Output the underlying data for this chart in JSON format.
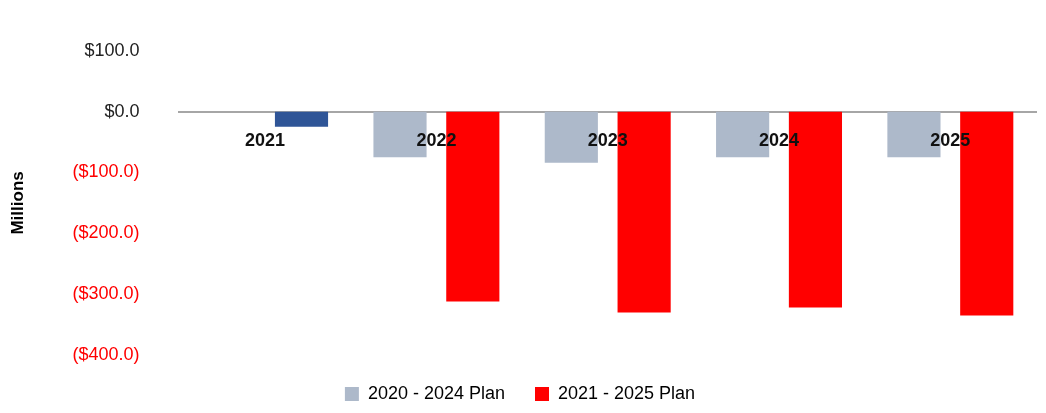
{
  "chart_data": {
    "type": "bar",
    "ylabel": "Millions",
    "categories": [
      "2021",
      "2022",
      "2023",
      "2024",
      "2025"
    ],
    "series": [
      {
        "name": "2020 - 2024 Plan",
        "color": "#adb9ca",
        "values": [
          null,
          -75,
          -84,
          -75,
          -75
        ]
      },
      {
        "name": "2021 - 2025 Plan",
        "color": "#ff0000",
        "colors": [
          "#2f5597",
          "#ff0000",
          "#ff0000",
          "#ff0000",
          "#ff0000"
        ],
        "values": [
          -25,
          -312,
          -330,
          -322,
          -335
        ]
      }
    ],
    "ylim": [
      -400,
      100
    ],
    "yticks": [
      {
        "value": 100,
        "label": "$100.0"
      },
      {
        "value": 0,
        "label": "$0.0"
      },
      {
        "value": -100,
        "label": "($100.0)"
      },
      {
        "value": -200,
        "label": "($200.0)"
      },
      {
        "value": -300,
        "label": "($300.0)"
      },
      {
        "value": -400,
        "label": "($400.0)"
      }
    ],
    "grid": false,
    "legend": "bottom"
  }
}
